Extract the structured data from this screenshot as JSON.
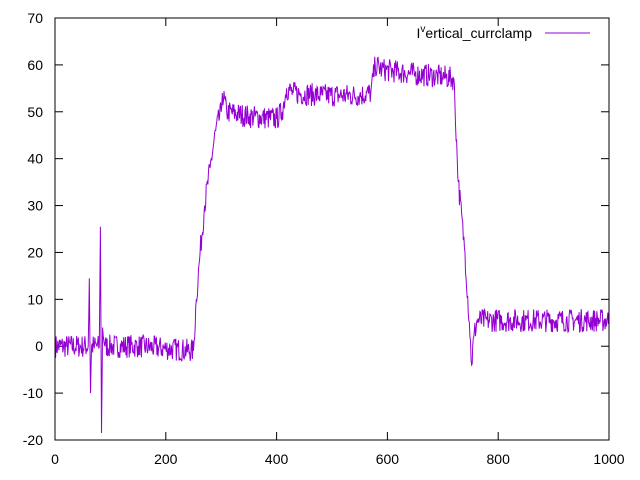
{
  "chart_data": {
    "type": "line",
    "title": "",
    "xlabel": "",
    "ylabel": "",
    "xlim": [
      0,
      1000
    ],
    "ylim": [
      -20,
      70
    ],
    "xticks": [
      "0",
      "200",
      "400",
      "600",
      "800",
      "1000"
    ],
    "yticks": [
      "-20",
      "-10",
      "0",
      "10",
      "20",
      "30",
      "40",
      "50",
      "60",
      "70"
    ],
    "grid": false,
    "legend_position": "top-right",
    "series": [
      {
        "name": "I^vertical_currclamp",
        "legend_main": "I",
        "legend_super": "v",
        "legend_rest": "ertical_currclamp",
        "color": "#9400d3",
        "x": [
          0,
          60,
          62,
          64,
          66,
          70,
          80,
          82,
          84,
          86,
          90,
          100,
          150,
          200,
          250,
          255,
          262,
          270,
          280,
          290,
          300,
          302,
          310,
          350,
          400,
          410,
          418,
          430,
          480,
          550,
          570,
          578,
          590,
          650,
          700,
          720,
          728,
          740,
          748,
          752,
          756,
          762,
          780,
          850,
          1000
        ],
        "y": [
          0,
          0,
          14.5,
          -10,
          0,
          0,
          0,
          25.5,
          -18.5,
          4,
          0,
          0,
          0,
          -0.5,
          -1,
          10,
          20,
          30,
          38,
          46,
          50,
          54,
          50,
          49,
          48.5,
          50,
          55,
          54,
          53.5,
          53.5,
          54,
          60,
          59,
          58,
          57.5,
          57,
          35,
          20,
          5,
          -4,
          2,
          5.5,
          5.5,
          5.5,
          5.5
        ],
        "noise_amplitude": 2.5
      }
    ]
  }
}
